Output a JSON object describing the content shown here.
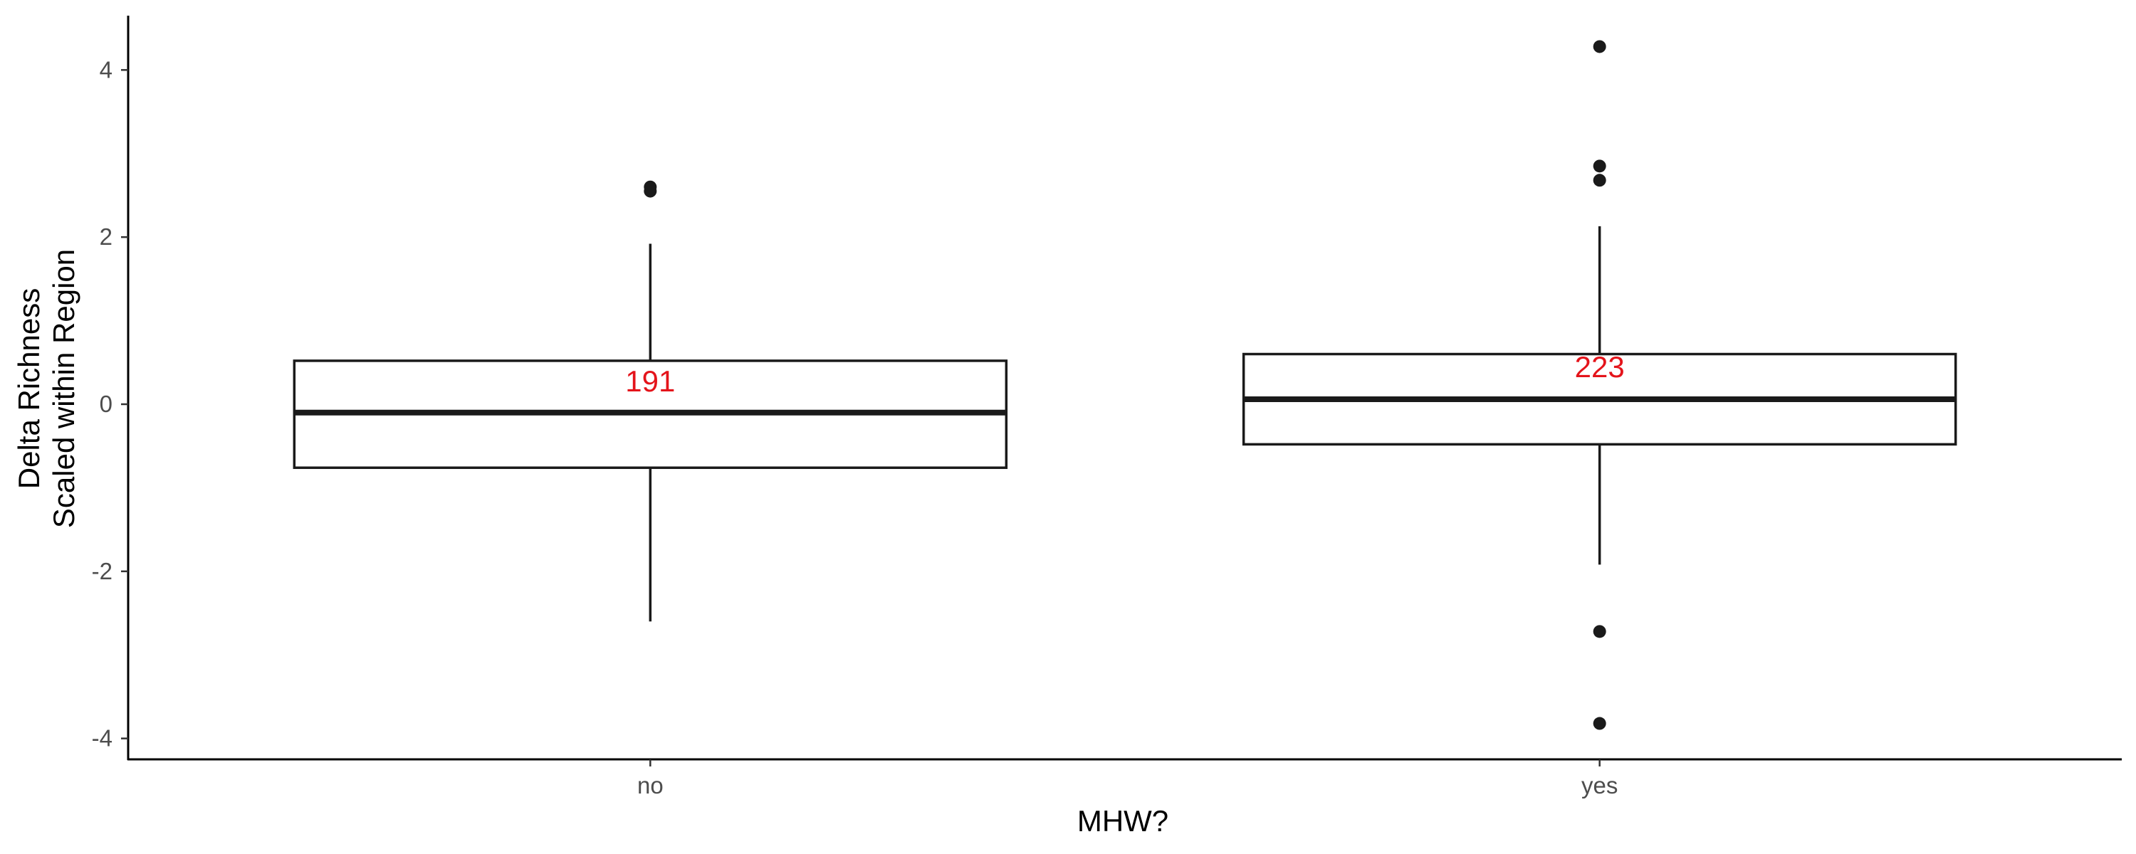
{
  "chart_data": {
    "type": "box",
    "xlabel": "MHW?",
    "ylabel_lines": [
      "Delta Richness",
      "Scaled within Region"
    ],
    "ylim": [
      -4.25,
      4.65
    ],
    "y_ticks": [
      -4,
      -2,
      0,
      2,
      4
    ],
    "y_tick_labels": [
      "-4",
      "-2",
      "0",
      "2",
      "4"
    ],
    "grid": false,
    "legend": "none",
    "count_color": "#e4141b",
    "groups": [
      {
        "category": "no",
        "whisker_low": -2.6,
        "q1": -0.76,
        "median": -0.1,
        "q3": 0.52,
        "whisker_high": 1.92,
        "outliers": [
          2.6,
          2.55
        ],
        "count_label": "191",
        "count_y": 0.28
      },
      {
        "category": "yes",
        "whisker_low": -1.92,
        "q1": -0.48,
        "median": 0.06,
        "q3": 0.6,
        "whisker_high": 2.13,
        "outliers": [
          4.28,
          2.85,
          2.68,
          -2.72,
          -3.82
        ],
        "count_label": "223",
        "count_y": 0.45
      }
    ]
  }
}
